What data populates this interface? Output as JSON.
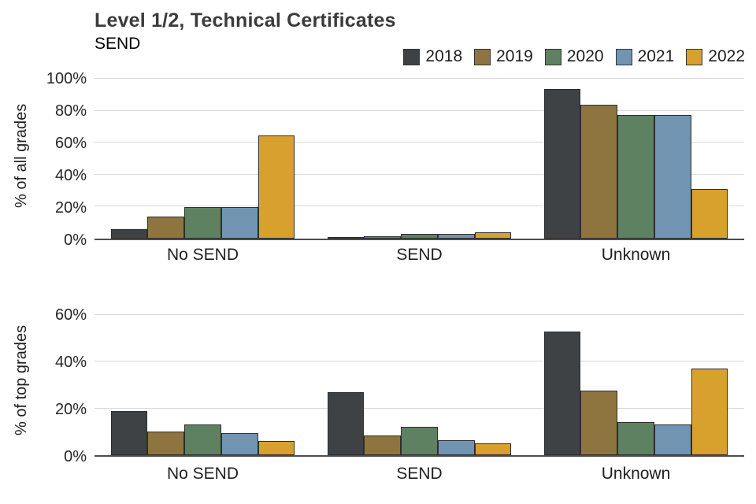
{
  "title": "Level 1/2, Technical Certificates",
  "subtitle": "SEND",
  "legend": {
    "position": "top-right",
    "entries": [
      "2018",
      "2019",
      "2020",
      "2021",
      "2022"
    ]
  },
  "colors": {
    "2018": "#3e4245",
    "2019": "#8e7540",
    "2020": "#5e8161",
    "2021": "#7194b3",
    "2022": "#d8a12e",
    "gridline": "#d9d9d9",
    "axis_line": "#4d4d4d",
    "bar_outline": "#2e2e2e"
  },
  "chart_data": [
    {
      "type": "bar",
      "title": "",
      "xlabel": "",
      "ylabel": "% of all grades",
      "categories": [
        "No SEND",
        "SEND",
        "Unknown"
      ],
      "series": [
        {
          "name": "2018",
          "values": [
            6,
            0.5,
            93.5
          ]
        },
        {
          "name": "2019",
          "values": [
            14,
            1.5,
            84
          ]
        },
        {
          "name": "2020",
          "values": [
            19.5,
            3,
            77.5
          ]
        },
        {
          "name": "2021",
          "values": [
            19.5,
            3,
            77.5
          ]
        },
        {
          "name": "2022",
          "values": [
            64.5,
            4,
            31
          ]
        }
      ],
      "ylim": [
        0,
        105
      ],
      "yticks": [
        0,
        20,
        40,
        60,
        80,
        100
      ],
      "tick_suffix": "%",
      "grid": true,
      "legend_position": "top-right"
    },
    {
      "type": "bar",
      "title": "",
      "xlabel": "",
      "ylabel": "% of top grades",
      "categories": [
        "No SEND",
        "SEND",
        "Unknown"
      ],
      "series": [
        {
          "name": "2018",
          "values": [
            19,
            27,
            53
          ]
        },
        {
          "name": "2019",
          "values": [
            10,
            8.5,
            27.5
          ]
        },
        {
          "name": "2020",
          "values": [
            13,
            12,
            14
          ]
        },
        {
          "name": "2021",
          "values": [
            9.5,
            6.5,
            13
          ]
        },
        {
          "name": "2022",
          "values": [
            6,
            5,
            37
          ]
        }
      ],
      "ylim": [
        0,
        65
      ],
      "yticks": [
        0,
        20,
        40,
        60
      ],
      "tick_suffix": "%",
      "grid": true
    }
  ]
}
